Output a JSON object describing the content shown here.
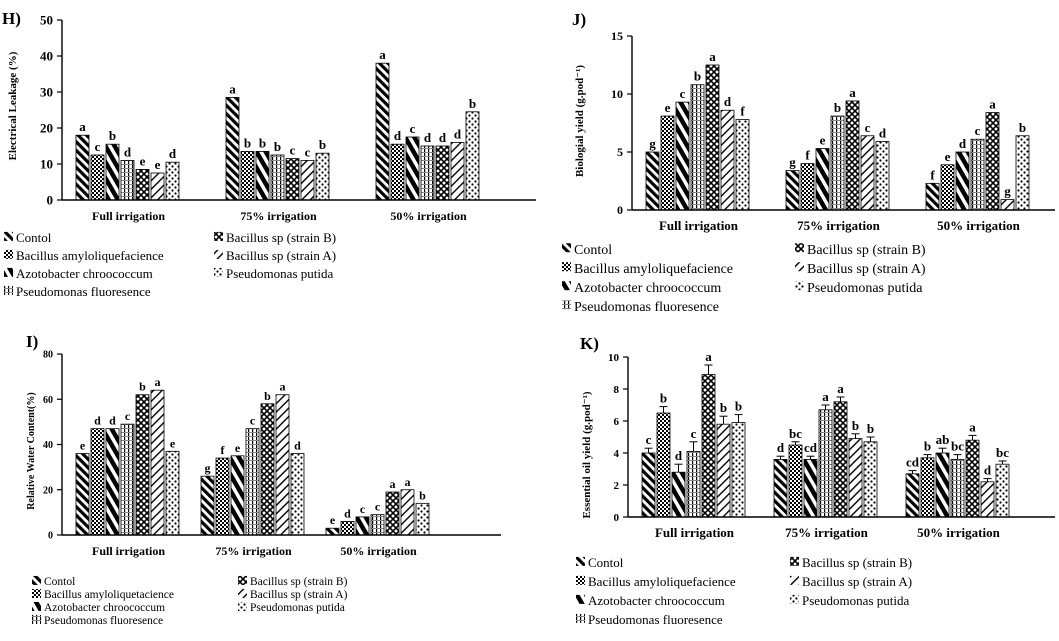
{
  "chart_data": [
    {
      "type": "bar",
      "panel_label": "H)",
      "ylabel": "Electrical Leakage (%)",
      "xlabel": "",
      "ylim": [
        0,
        50
      ],
      "yticks": [
        "0",
        "10",
        "20",
        "30",
        "40",
        "50"
      ],
      "categories": [
        "Full irrigation",
        "75% irrigation",
        "50% irrigation"
      ],
      "legend_placement": "bottom",
      "series": [
        {
          "name": "Contol",
          "values": [
            18,
            28.5,
            38
          ]
        },
        {
          "name": "Bacillus amyloliquefacience",
          "values": [
            12.5,
            13.5,
            15.5
          ]
        },
        {
          "name": "Azotobacter chroococcum",
          "values": [
            15.5,
            13.5,
            17.5
          ]
        },
        {
          "name": "Pseudomonas fluoresence",
          "values": [
            11,
            12.5,
            15
          ]
        },
        {
          "name": "Bacillus sp (strain B)",
          "values": [
            8.5,
            11.5,
            15
          ]
        },
        {
          "name": "Bacillus sp (strain A)",
          "values": [
            7.5,
            11,
            16
          ]
        },
        {
          "name": "Pseudomonas putida",
          "values": [
            10.5,
            13,
            24.5
          ]
        }
      ],
      "bar_labels": [
        [
          "a",
          "c",
          "b",
          "d",
          "e",
          "e",
          "d"
        ],
        [
          "a",
          "b",
          "b",
          "b",
          "c",
          "c",
          "b"
        ],
        [
          "a",
          "d",
          "c",
          "d",
          "d",
          "d",
          "b"
        ]
      ]
    },
    {
      "type": "bar",
      "panel_label": "J)",
      "ylabel": "Biologial yield (g.pod⁻¹)",
      "xlabel": "",
      "ylim": [
        0,
        15
      ],
      "yticks": [
        "0",
        "5",
        "10",
        "15"
      ],
      "categories": [
        "Full irrigation",
        "75% irrigation",
        "50% irrigation"
      ],
      "legend_placement": "bottom",
      "series": [
        {
          "name": "Contol",
          "values": [
            5,
            3.4,
            2.3
          ]
        },
        {
          "name": "Bacillus amyloliquefacience",
          "values": [
            8.1,
            4,
            3.9
          ]
        },
        {
          "name": "Azotobacter chroococcum",
          "values": [
            9.3,
            5.3,
            5
          ]
        },
        {
          "name": "Pseudomonas fluoresence",
          "values": [
            10.8,
            8.1,
            6.1
          ]
        },
        {
          "name": "Bacillus sp (strain B)",
          "values": [
            12.5,
            9.4,
            8.4
          ]
        },
        {
          "name": "Bacillus sp (strain A)",
          "values": [
            8.6,
            6.4,
            0.9
          ]
        },
        {
          "name": "Pseudomonas putida",
          "values": [
            7.8,
            5.9,
            6.4
          ]
        }
      ],
      "bar_labels": [
        [
          "g",
          "e",
          "c",
          "b",
          "a",
          "d",
          "f"
        ],
        [
          "g",
          "f",
          "e",
          "b",
          "a",
          "c",
          "d"
        ],
        [
          "f",
          "e",
          "d",
          "c",
          "a",
          "g",
          "b"
        ]
      ]
    },
    {
      "type": "bar",
      "panel_label": "I)",
      "ylabel": "Relative Water Content(%)",
      "xlabel": "",
      "ylim": [
        0,
        80
      ],
      "yticks": [
        "0",
        "20",
        "40",
        "60",
        "80"
      ],
      "categories": [
        "Full irrigation",
        "75% irrigation",
        "50% irrigation"
      ],
      "legend_placement": "bottom",
      "series": [
        {
          "name": "Contol",
          "values": [
            36,
            26,
            3
          ]
        },
        {
          "name": "Bacillus amyloliquetacience",
          "values": [
            47,
            34,
            6
          ]
        },
        {
          "name": "Azotobacter chroococcum",
          "values": [
            47,
            35,
            8
          ]
        },
        {
          "name": "Pseudomonas fluoresence",
          "values": [
            49,
            47,
            9
          ]
        },
        {
          "name": "Bacillus sp (strain B)",
          "values": [
            62,
            58,
            19
          ]
        },
        {
          "name": "Bacillus sp (strain A)",
          "values": [
            64,
            62,
            20
          ]
        },
        {
          "name": "Pseudomonas putida",
          "values": [
            37,
            36,
            14
          ]
        }
      ],
      "bar_labels": [
        [
          "e",
          "d",
          "d",
          "c",
          "b",
          "a",
          "e"
        ],
        [
          "g",
          "f",
          "e",
          "c",
          "b",
          "a",
          "d"
        ],
        [
          "e",
          "d",
          "c",
          "c",
          "a",
          "a",
          "b"
        ]
      ]
    },
    {
      "type": "bar",
      "panel_label": "K)",
      "ylabel": "Essential oil yield (g.pod⁻¹)",
      "xlabel": "",
      "ylim": [
        0,
        10
      ],
      "yticks": [
        "0",
        "2",
        "4",
        "6",
        "8",
        "10"
      ],
      "categories": [
        "Full irrigation",
        "75% irrigation",
        "50% irrigation"
      ],
      "legend_placement": "bottom",
      "series": [
        {
          "name": "Contol",
          "values": [
            4,
            3.6,
            2.7
          ],
          "errors": [
            0.3,
            0.2,
            0.2
          ]
        },
        {
          "name": "Bacillus amyloliquefacience",
          "values": [
            6.5,
            4.5,
            3.7
          ],
          "errors": [
            0.4,
            0.2,
            0.2
          ]
        },
        {
          "name": "Azotobacter chroococcum",
          "values": [
            2.8,
            3.6,
            4
          ],
          "errors": [
            0.5,
            0.2,
            0.3
          ]
        },
        {
          "name": "Pseudomonas fluoresence",
          "values": [
            4.1,
            6.7,
            3.6
          ],
          "errors": [
            0.6,
            0.3,
            0.3
          ]
        },
        {
          "name": "Bacillus sp (strain B)",
          "values": [
            8.9,
            7.2,
            4.8
          ],
          "errors": [
            0.6,
            0.3,
            0.3
          ]
        },
        {
          "name": "Bacillus sp (strain A)",
          "values": [
            5.8,
            4.9,
            2.2
          ],
          "errors": [
            0.5,
            0.3,
            0.2
          ]
        },
        {
          "name": "Pseudomonas putida",
          "values": [
            5.9,
            4.7,
            3.3
          ],
          "errors": [
            0.5,
            0.3,
            0.2
          ]
        }
      ],
      "bar_labels": [
        [
          "c",
          "b",
          "d",
          "c",
          "a",
          "b",
          "b"
        ],
        [
          "d",
          "bc",
          "cd",
          "a",
          "a",
          "b",
          "b"
        ],
        [
          "cd",
          "b",
          "ab",
          "bc",
          "a",
          "d",
          "bc"
        ]
      ]
    }
  ],
  "legends": [
    [
      "Contol",
      "Bacillus sp (strain B)",
      "Bacillus amyloliquefacience",
      "Bacillus sp (strain A)",
      "Azotobacter chroococcum",
      "Pseudomonas putida",
      "Pseudomonas fluoresence"
    ],
    [
      "Contol",
      "Bacillus sp (strain B)",
      "Bacillus amyloliquefacience",
      "Bacillus sp (strain A)",
      "Azotobacter chroococcum",
      "Pseudomonas putida",
      "Pseudomonas fluoresence"
    ],
    [
      "Contol",
      "Bacillus sp (strain B)",
      "Bacillus amyloliquetacience",
      "Bacillus sp (strain A)",
      "Azotobacter chroococcum",
      "Pseudomonas putida",
      "Pseudomonas fluoresence"
    ],
    [
      "Contol",
      "Bacillus sp (strain B)",
      "Bacillus amyloliquefacience",
      "Bacillus sp (strain A)",
      "Azotobacter chroococcum",
      "Pseudomonas putida",
      "Pseudomonas fluoresence"
    ]
  ]
}
